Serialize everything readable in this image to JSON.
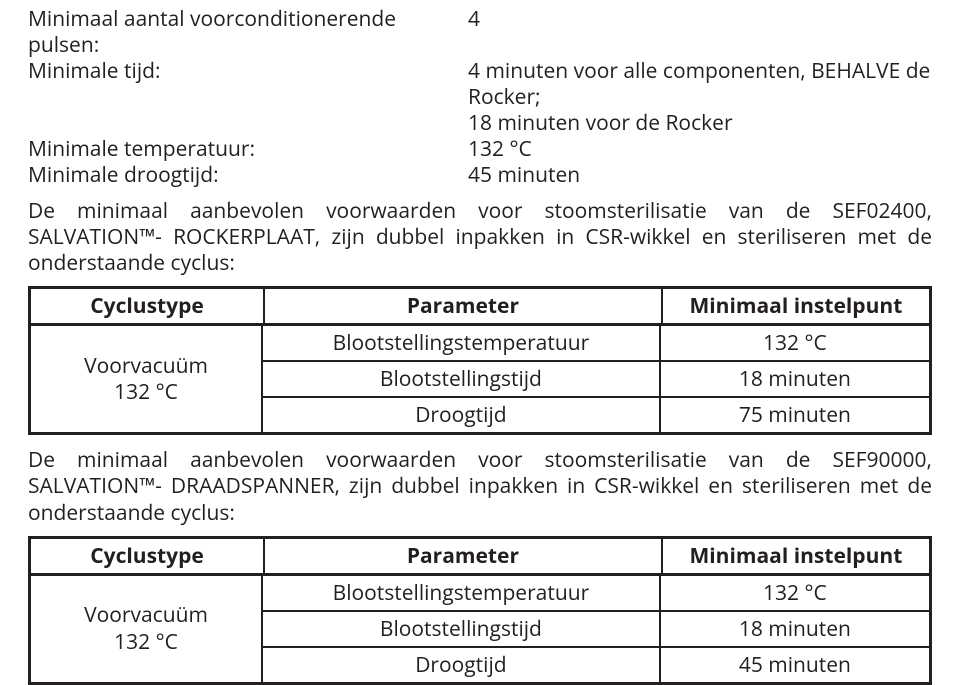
{
  "specs": {
    "rows": [
      {
        "label": "Minimaal aantal voorconditionerende pulsen:",
        "value": "4"
      },
      {
        "label": "Minimale tijd:",
        "value": "4 minuten voor alle componenten, BEHALVE de Rocker;"
      },
      {
        "label": "",
        "value": "18 minuten voor de Rocker"
      },
      {
        "label": "Minimale temperatuur:",
        "value": "132 °C"
      },
      {
        "label": "Minimale droogtijd:",
        "value": "45 minuten"
      }
    ]
  },
  "para1": "De minimaal aanbevolen voorwaarden voor stoomsterilisatie van de SEF02400, SALVATION™- ROCKERPLAAT, zijn dubbel inpakken in CSR-wikkel en steriliseren met de onderstaande cyclus:",
  "table1": {
    "headers": [
      "Cyclustype",
      "Parameter",
      "Minimaal instelpunt"
    ],
    "leftCell": "Voorvacuüm\n132 °C",
    "rows": [
      {
        "param": "Blootstellingstemperatuur",
        "value": "132 °C"
      },
      {
        "param": "Blootstellingstijd",
        "value": "18 minuten"
      },
      {
        "param": "Droogtijd",
        "value": "75 minuten"
      }
    ]
  },
  "para2": "De minimaal aanbevolen voorwaarden voor stoomsterilisatie van de SEF90000, SALVATION™- DRAADSPANNER, zijn dubbel inpakken in CSR-wikkel en steriliseren met de onderstaande cyclus:",
  "table2": {
    "headers": [
      "Cyclustype",
      "Parameter",
      "Minimaal instelpunt"
    ],
    "leftCell": "Voorvacuüm\n132 °C",
    "rows": [
      {
        "param": "Blootstellingstemperatuur",
        "value": "132 °C"
      },
      {
        "param": "Blootstellingstijd",
        "value": "18 minuten"
      },
      {
        "param": "Droogtijd",
        "value": "45 minuten"
      }
    ]
  }
}
